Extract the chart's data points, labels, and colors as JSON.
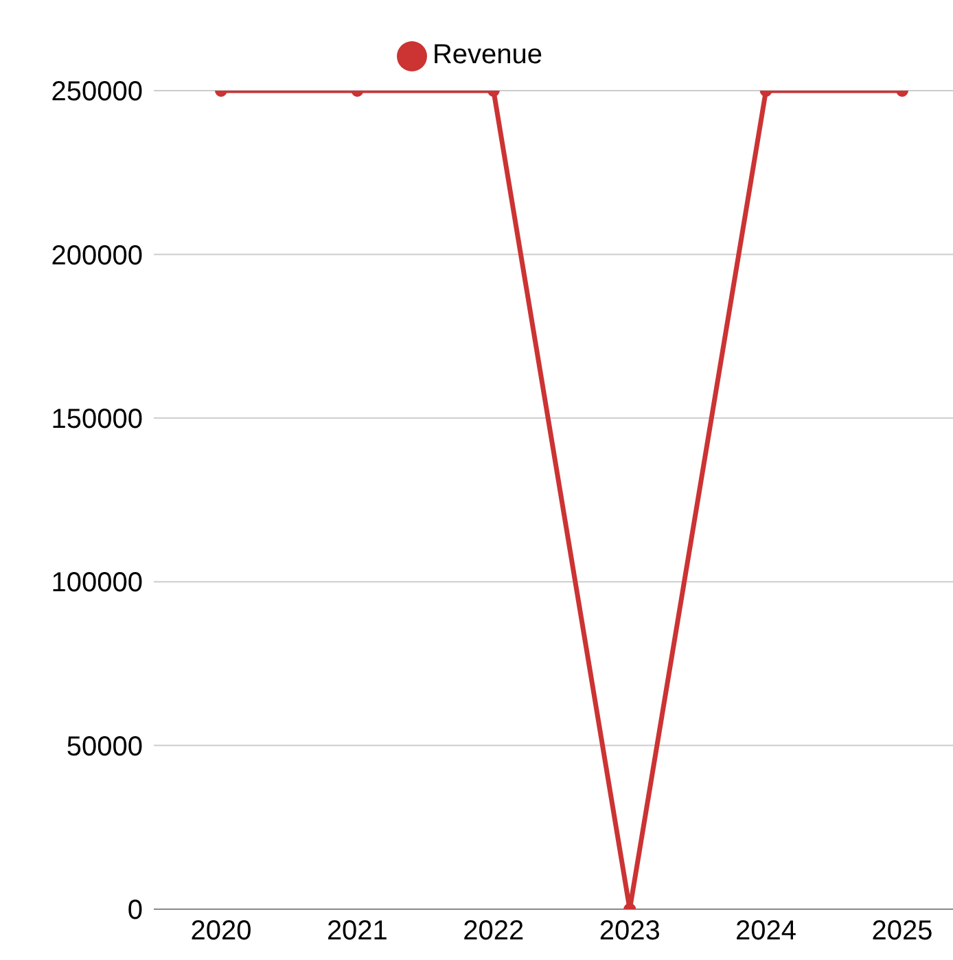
{
  "chart_data": {
    "type": "line",
    "categories": [
      "2020",
      "2021",
      "2022",
      "2023",
      "2024",
      "2025"
    ],
    "series": [
      {
        "name": "Revenue",
        "color": "#cc3333",
        "values": [
          250000,
          250000,
          250000,
          0,
          250000,
          250000
        ]
      }
    ],
    "ylim": [
      0,
      250000
    ],
    "yticks": [
      0,
      50000,
      100000,
      150000,
      200000,
      250000
    ],
    "grid": "y",
    "legend": "top",
    "marker": "circle",
    "line_style": "solid"
  }
}
